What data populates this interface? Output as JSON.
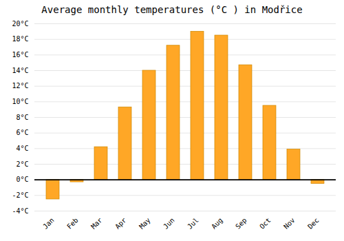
{
  "chart_data": {
    "type": "bar",
    "title": "Average monthly temperatures (°C ) in Modřice",
    "categories": [
      "Jan",
      "Feb",
      "Mar",
      "Apr",
      "May",
      "Jun",
      "Jul",
      "Aug",
      "Sep",
      "Oct",
      "Nov",
      "Dec"
    ],
    "values": [
      -2.5,
      -0.3,
      4.2,
      9.3,
      14.0,
      17.2,
      19.0,
      18.5,
      14.7,
      9.5,
      3.9,
      -0.5
    ],
    "color": "#FFA726",
    "ylim": [
      -4,
      20
    ],
    "yticks": [
      {
        "value": -4,
        "label": "-4°C"
      },
      {
        "value": -2,
        "label": "-2°C"
      },
      {
        "value": 0,
        "label": "0°C"
      },
      {
        "value": 2,
        "label": "2°C"
      },
      {
        "value": 4,
        "label": "4°C"
      },
      {
        "value": 6,
        "label": "6°C"
      },
      {
        "value": 8,
        "label": "8°C"
      },
      {
        "value": 10,
        "label": "10°C"
      },
      {
        "value": 12,
        "label": "12°C"
      },
      {
        "value": 14,
        "label": "14°C"
      },
      {
        "value": 16,
        "label": "16°C"
      },
      {
        "value": 18,
        "label": "18°C"
      },
      {
        "value": 20,
        "label": "20°C"
      }
    ],
    "grid": true
  }
}
